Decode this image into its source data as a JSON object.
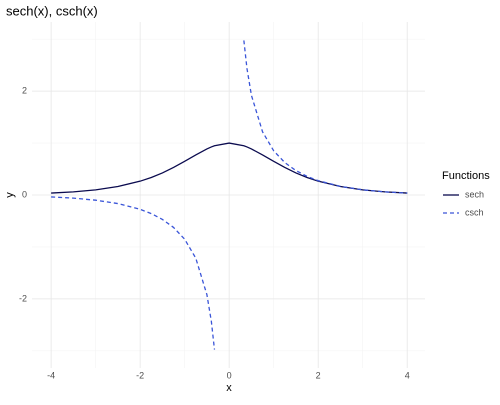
{
  "chart_data": {
    "type": "line",
    "title": "sech(x), csch(x)",
    "x_label": "x",
    "y_label": "y",
    "x": [
      -4,
      -3.5,
      -3,
      -2.5,
      -2,
      -1.75,
      -1.5,
      -1.25,
      -1,
      -0.75,
      -0.5,
      -0.4,
      -0.33,
      0,
      0.33,
      0.4,
      0.5,
      0.75,
      1,
      1.25,
      1.5,
      1.75,
      2,
      2.5,
      3,
      3.5,
      4
    ],
    "series": [
      {
        "name": "sech",
        "color": "#0b0b4f",
        "dash": false,
        "values": [
          0.037,
          0.06,
          0.099,
          0.163,
          0.266,
          0.337,
          0.425,
          0.53,
          0.648,
          0.772,
          0.887,
          0.925,
          0.948,
          1,
          0.948,
          0.925,
          0.887,
          0.772,
          0.648,
          0.53,
          0.425,
          0.337,
          0.266,
          0.163,
          0.099,
          0.06,
          0.037
        ]
      },
      {
        "name": "csch",
        "color": "#3a55d8",
        "dash": true,
        "values": [
          -0.037,
          -0.06,
          -0.1,
          -0.165,
          -0.276,
          -0.358,
          -0.47,
          -0.624,
          -0.851,
          -1.216,
          -1.919,
          -2.434,
          -2.976,
          null,
          2.976,
          2.434,
          1.919,
          1.216,
          0.851,
          0.624,
          0.47,
          0.358,
          0.276,
          0.165,
          0.1,
          0.06,
          0.037
        ]
      }
    ],
    "legend_title": "Functions",
    "xlim": [
      -4.43,
      4.4
    ],
    "ylim": [
      -3.33,
      3.33
    ],
    "xticks": [
      -4,
      -2,
      0,
      2,
      4
    ],
    "yticks": [
      -2,
      0,
      2
    ],
    "minor_xticks": [
      -3,
      -1,
      1,
      3
    ],
    "minor_yticks": [
      -3,
      -1,
      1,
      3
    ],
    "grid": true,
    "legend": "right"
  }
}
